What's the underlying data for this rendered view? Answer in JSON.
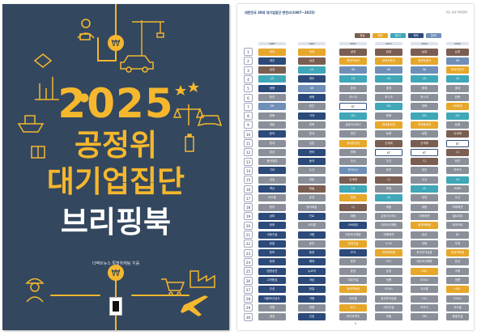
{
  "cover": {
    "year": "2025",
    "line1": "공정위",
    "line2": "대기업집단",
    "line3": "브리핑북",
    "author": "더팩트뉴스 특별취재팀 지음",
    "colors": {
      "bg": "#33475f",
      "accent": "#f5b72d"
    },
    "icons": [
      "person-with-laptop-icon",
      "tower-crane-icon",
      "car-icon",
      "bar-chart-icon",
      "currency-coin-icon",
      "stars-icon",
      "ship-icon",
      "gift-box-icon",
      "scale-icon",
      "game-controller-icon",
      "battery-icon",
      "shopping-cart-icon",
      "worker-with-helmet-icon",
      "airplane-icon",
      "handshake-icon",
      "factory-icon"
    ]
  },
  "page": {
    "title": "대한민국 30대 대기업집단 변천사(1987~2025)",
    "subtitle": "자료: 공정거래위원회",
    "page_number": "5",
    "legend": [
      {
        "label": "범삼",
        "color": "#7a5e52"
      },
      {
        "label": "범현",
        "color": "#e6a72a"
      },
      {
        "label": "범LG",
        "color": "#3fa7b8"
      },
      {
        "label": "해체",
        "color": "#2c4a7a"
      },
      {
        "label": "범SK",
        "color": "#6f8fb8"
      }
    ],
    "years": [
      "1987",
      "1997",
      "2007",
      "2017",
      "2020",
      "2025"
    ],
    "ranks": [
      "1",
      "2",
      "3",
      "4",
      "5",
      "6",
      "7",
      "8",
      "9",
      "10",
      "11",
      "12",
      "13",
      "14",
      "15",
      "16",
      "17",
      "18",
      "19",
      "20",
      "21",
      "22",
      "23",
      "24",
      "25",
      "26",
      "27",
      "28",
      "29",
      "30"
    ],
    "columns": [
      {
        "cells": [
          [
            "현대",
            "#e6a72a"
          ],
          [
            "대우",
            "#2c4a7a"
          ],
          [
            "삼성",
            "#7a5e52"
          ],
          [
            "LG",
            "#3fa7b8"
          ],
          [
            "쌍용",
            "#2c4a7a"
          ],
          [
            "한진",
            "#8a8f99"
          ],
          [
            "SK",
            "#6f8fb8"
          ],
          [
            "한화",
            "#8a8f99"
          ],
          [
            "대림",
            "#8a8f99"
          ],
          [
            "동아",
            "#2c4a7a"
          ],
          [
            "롯데",
            "#8a8f99"
          ],
          [
            "효성",
            "#8a8f99"
          ],
          [
            "동국제강",
            "#8a8f99"
          ],
          [
            "기아",
            "#2c4a7a"
          ],
          [
            "금호",
            "#8a8f99"
          ],
          [
            "벽산",
            "#2c4a7a"
          ],
          [
            "코오롱",
            "#8a8f99"
          ],
          [
            "동부",
            "#8a8f99"
          ],
          [
            "삼미",
            "#2c4a7a"
          ],
          [
            "한양",
            "#2c4a7a"
          ],
          [
            "극동건설",
            "#2c4a7a"
          ],
          [
            "한일",
            "#2c4a7a"
          ],
          [
            "한보",
            "#2c4a7a"
          ],
          [
            "동양",
            "#2c4a7a"
          ],
          [
            "범양상선",
            "#2c4a7a"
          ],
          [
            "고려합섬",
            "#2c4a7a"
          ],
          [
            "우성",
            "#2c4a7a"
          ],
          [
            "대한조선공사",
            "#2c4a7a"
          ],
          [
            "미원",
            "#8a8f99"
          ],
          [
            "대성",
            "#8a8f99"
          ]
        ]
      },
      {
        "cells": [
          [
            "현대",
            "#e6a72a"
          ],
          [
            "삼성",
            "#7a5e52"
          ],
          [
            "LG",
            "#3fa7b8"
          ],
          [
            "대우",
            "#2c4a7a"
          ],
          [
            "SK",
            "#6f8fb8"
          ],
          [
            "쌍용",
            "#2c4a7a"
          ],
          [
            "한진",
            "#8a8f99"
          ],
          [
            "기아",
            "#2c4a7a"
          ],
          [
            "한화",
            "#8a8f99"
          ],
          [
            "롯데",
            "#8a8f99"
          ],
          [
            "금호",
            "#8a8f99"
          ],
          [
            "한라",
            "#2c4a7a"
          ],
          [
            "동아",
            "#2c4a7a"
          ],
          [
            "두산",
            "#8a8f99"
          ],
          [
            "대림",
            "#8a8f99"
          ],
          [
            "한솔",
            "#7a5e52"
          ],
          [
            "효성",
            "#8a8f99"
          ],
          [
            "동국제강",
            "#8a8f99"
          ],
          [
            "진로",
            "#2c4a7a"
          ],
          [
            "코오롱",
            "#8a8f99"
          ],
          [
            "고합",
            "#2c4a7a"
          ],
          [
            "동부",
            "#8a8f99"
          ],
          [
            "동양",
            "#2c4a7a"
          ],
          [
            "해태",
            "#2c4a7a"
          ],
          [
            "뉴코아",
            "#2c4a7a"
          ],
          [
            "아남",
            "#2c4a7a"
          ],
          [
            "한일",
            "#2c4a7a"
          ],
          [
            "거평",
            "#2c4a7a"
          ],
          [
            "미원",
            "#8a8f99"
          ],
          [
            "신호",
            "#2c4a7a"
          ]
        ]
      },
      {
        "cells": [
          [
            "삼성",
            "#7a5e52"
          ],
          [
            "현대자동차",
            "#e6a72a"
          ],
          [
            "SK",
            "#6f8fb8"
          ],
          [
            "LG",
            "#3fa7b8"
          ],
          [
            "롯데",
            "#8a8f99"
          ],
          [
            "포스코",
            "#8a8f99"
          ],
          [
            "KT",
            "#ffffff"
          ],
          [
            "GS",
            "#3fa7b8"
          ],
          [
            "금호아시아나",
            "#8a8f99"
          ],
          [
            "한진",
            "#8a8f99"
          ],
          [
            "현대중공업",
            "#e6a72a"
          ],
          [
            "한화",
            "#8a8f99"
          ],
          [
            "두산",
            "#8a8f99"
          ],
          [
            "하이닉스",
            "#6f8fb8"
          ],
          [
            "신세계",
            "#7a5e52"
          ],
          [
            "LS",
            "#3fa7b8"
          ],
          [
            "현대",
            "#e6a72a"
          ],
          [
            "CJ",
            "#7a5e52"
          ],
          [
            "대림",
            "#8a8f99"
          ],
          [
            "GM대우",
            "#2c4a7a"
          ],
          [
            "대우조선해양",
            "#8a8f99"
          ],
          [
            "현대건설",
            "#e6a72a"
          ],
          [
            "STX",
            "#2c4a7a"
          ],
          [
            "동부",
            "#8a8f99"
          ],
          [
            "효성",
            "#8a8f99"
          ],
          [
            "대우건설",
            "#8a8f99"
          ],
          [
            "현대백화점",
            "#e6a72a"
          ],
          [
            "코오롱",
            "#8a8f99"
          ],
          [
            "KCC",
            "#e6a72a"
          ],
          [
            "하이트맥주",
            "#8a8f99"
          ]
        ]
      },
      {
        "cells": [
          [
            "삼성",
            "#7a5e52"
          ],
          [
            "현대자동차",
            "#e6a72a"
          ],
          [
            "SK",
            "#6f8fb8"
          ],
          [
            "LG",
            "#3fa7b8"
          ],
          [
            "롯데",
            "#8a8f99"
          ],
          [
            "포스코",
            "#8a8f99"
          ],
          [
            "GS",
            "#3fa7b8"
          ],
          [
            "한화",
            "#8a8f99"
          ],
          [
            "현대중공업",
            "#e6a72a"
          ],
          [
            "농협",
            "#8a8f99"
          ],
          [
            "신세계",
            "#7a5e52"
          ],
          [
            "KT",
            "#ffffff"
          ],
          [
            "두산",
            "#8a8f99"
          ],
          [
            "한진",
            "#8a8f99"
          ],
          [
            "CJ",
            "#7a5e52"
          ],
          [
            "부영",
            "#8a8f99"
          ],
          [
            "LS",
            "#3fa7b8"
          ],
          [
            "대림",
            "#8a8f99"
          ],
          [
            "금호아시아나",
            "#8a8f99"
          ],
          [
            "대우조선해양",
            "#8a8f99"
          ],
          [
            "미래에셋",
            "#8a8f99"
          ],
          [
            "S-Oil",
            "#8a8f99"
          ],
          [
            "현대백화점",
            "#e6a72a"
          ],
          [
            "OCI",
            "#8a8f99"
          ],
          [
            "효성",
            "#8a8f99"
          ],
          [
            "영풍",
            "#8a8f99"
          ],
          [
            "KT&G",
            "#8a8f99"
          ],
          [
            "한국투자금융",
            "#8a8f99"
          ],
          [
            "대우건설",
            "#8a8f99"
          ],
          [
            "하림",
            "#8a8f99"
          ]
        ]
      },
      {
        "cells": [
          [
            "삼성",
            "#7a5e52"
          ],
          [
            "현대자동차",
            "#e6a72a"
          ],
          [
            "SK",
            "#6f8fb8"
          ],
          [
            "LG",
            "#3fa7b8"
          ],
          [
            "롯데",
            "#8a8f99"
          ],
          [
            "포스코",
            "#8a8f99"
          ],
          [
            "한화",
            "#8a8f99"
          ],
          [
            "GS",
            "#3fa7b8"
          ],
          [
            "현대중공업",
            "#e6a72a"
          ],
          [
            "농협",
            "#8a8f99"
          ],
          [
            "신세계",
            "#7a5e52"
          ],
          [
            "KT",
            "#ffffff"
          ],
          [
            "CJ",
            "#7a5e52"
          ],
          [
            "한진",
            "#8a8f99"
          ],
          [
            "두산",
            "#8a8f99"
          ],
          [
            "LS",
            "#3fa7b8"
          ],
          [
            "부영",
            "#8a8f99"
          ],
          [
            "대림",
            "#8a8f99"
          ],
          [
            "미래에셋",
            "#8a8f99"
          ],
          [
            "현대백화점",
            "#e6a72a"
          ],
          [
            "효성",
            "#8a8f99"
          ],
          [
            "영풍",
            "#8a8f99"
          ],
          [
            "한국투자금융",
            "#8a8f99"
          ],
          [
            "대우조선해양",
            "#8a8f99"
          ],
          [
            "HDC",
            "#e6a72a"
          ],
          [
            "KT&G",
            "#8a8f99"
          ],
          [
            "코오롱",
            "#8a8f99"
          ],
          [
            "OCI",
            "#8a8f99"
          ],
          [
            "카카오",
            "#8a8f99"
          ],
          [
            "SM",
            "#8a8f99"
          ]
        ]
      },
      {
        "cells": [
          [
            "삼성",
            "#7a5e52"
          ],
          [
            "SK",
            "#6f8fb8"
          ],
          [
            "현대자동차",
            "#e6a72a"
          ],
          [
            "LG",
            "#3fa7b8"
          ],
          [
            "롯데",
            "#8a8f99"
          ],
          [
            "한화",
            "#8a8f99"
          ],
          [
            "HD현대",
            "#e6a72a"
          ],
          [
            "GS",
            "#3fa7b8"
          ],
          [
            "농협",
            "#8a8f99"
          ],
          [
            "신세계",
            "#7a5e52"
          ],
          [
            "KT",
            "#ffffff"
          ],
          [
            "CJ",
            "#7a5e52"
          ],
          [
            "한진",
            "#8a8f99"
          ],
          [
            "카카오",
            "#8a8f99"
          ],
          [
            "LS",
            "#3fa7b8"
          ],
          [
            "HMM",
            "#8a8f99"
          ],
          [
            "두산",
            "#8a8f99"
          ],
          [
            "미래에셋",
            "#8a8f99"
          ],
          [
            "셀트리온",
            "#8a8f99"
          ],
          [
            "에코프로",
            "#8a8f99"
          ],
          [
            "DL",
            "#8a8f99"
          ],
          [
            "부영",
            "#8a8f99"
          ],
          [
            "현대백화점",
            "#e6a72a"
          ],
          [
            "효성",
            "#8a8f99"
          ],
          [
            "쿠팡",
            "#8a8f99"
          ],
          [
            "영풍",
            "#8a8f99"
          ],
          [
            "HDC",
            "#e6a72a"
          ],
          [
            "KT&G",
            "#8a8f99"
          ],
          [
            "코오롱",
            "#8a8f99"
          ],
          [
            "중흥건설",
            "#8a8f99"
          ]
        ]
      }
    ]
  }
}
